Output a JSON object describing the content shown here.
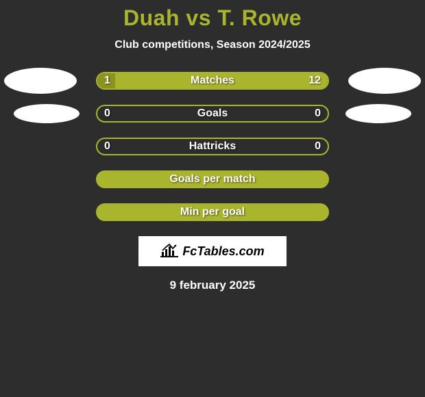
{
  "title": "Duah vs T. Rowe",
  "subtitle": "Club competitions, Season 2024/2025",
  "colors": {
    "accent": "#aab52e",
    "accent_dark": "#8b941f",
    "bg": "#2d2d2d",
    "oval": "#ffffff",
    "white": "#ffffff",
    "black": "#000000"
  },
  "rows": [
    {
      "label": "Matches",
      "left_val": "1",
      "right_val": "12",
      "left_pct": 7.7,
      "right_pct": 92.3,
      "show_ovals": true,
      "oval_size": "big"
    },
    {
      "label": "Goals",
      "left_val": "0",
      "right_val": "0",
      "left_pct": 0,
      "right_pct": 0,
      "show_ovals": true,
      "oval_size": "small"
    },
    {
      "label": "Hattricks",
      "left_val": "0",
      "right_val": "0",
      "left_pct": 0,
      "right_pct": 0,
      "show_ovals": false
    },
    {
      "label": "Goals per match",
      "left_val": "",
      "right_val": "",
      "left_pct": 100,
      "right_pct": 0,
      "show_ovals": false,
      "solid": true
    },
    {
      "label": "Min per goal",
      "left_val": "",
      "right_val": "",
      "left_pct": 100,
      "right_pct": 0,
      "show_ovals": false,
      "solid": true
    }
  ],
  "logo_text": "FcTables.com",
  "footer_date": "9 february 2025"
}
